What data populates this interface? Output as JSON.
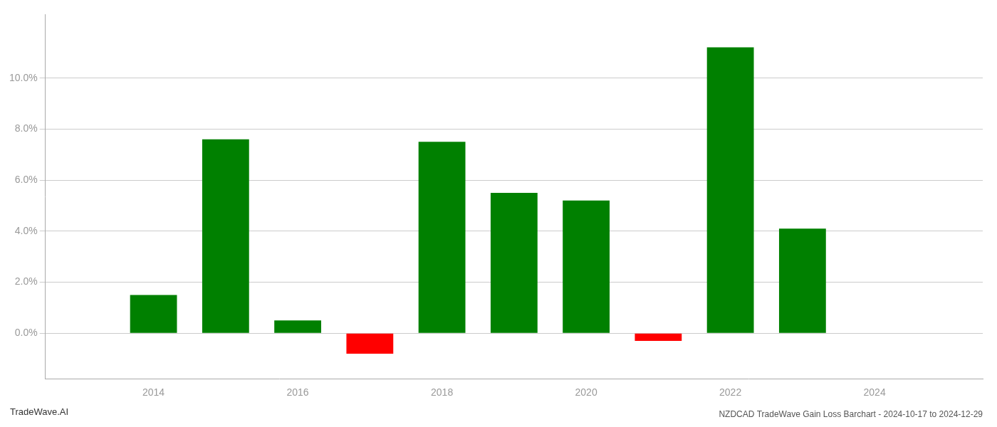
{
  "chart_data": {
    "type": "bar",
    "title": "NZDCAD TradeWave Gain Loss Barchart - 2024-10-17 to 2024-12-29",
    "annotations": [
      "TradeWave.AI"
    ],
    "x": [
      2013,
      2014,
      2015,
      2016,
      2017,
      2018,
      2019,
      2020,
      2021,
      2022,
      2023,
      2024
    ],
    "values": [
      0.0,
      0.015,
      0.076,
      0.005,
      -0.008,
      0.075,
      0.055,
      0.052,
      -0.003,
      0.112,
      0.041,
      0.0
    ],
    "colors": [
      "#008000",
      "#008000",
      "#008000",
      "#008000",
      "#ff0000",
      "#008000",
      "#008000",
      "#008000",
      "#ff0000",
      "#008000",
      "#008000",
      "#008000"
    ],
    "xlim": [
      2012.5,
      2025.5
    ],
    "xticks": [
      2014,
      2016,
      2018,
      2020,
      2022,
      2024
    ],
    "ylim": [
      -0.018,
      0.125
    ],
    "yticks": [
      {
        "value": 0.0,
        "label": "0.0%"
      },
      {
        "value": 0.02,
        "label": "2.0%"
      },
      {
        "value": 0.04,
        "label": "4.0%"
      },
      {
        "value": 0.06,
        "label": "6.0%"
      },
      {
        "value": 0.08,
        "label": "8.0%"
      },
      {
        "value": 0.1,
        "label": "10.0%"
      }
    ],
    "grid": true
  }
}
